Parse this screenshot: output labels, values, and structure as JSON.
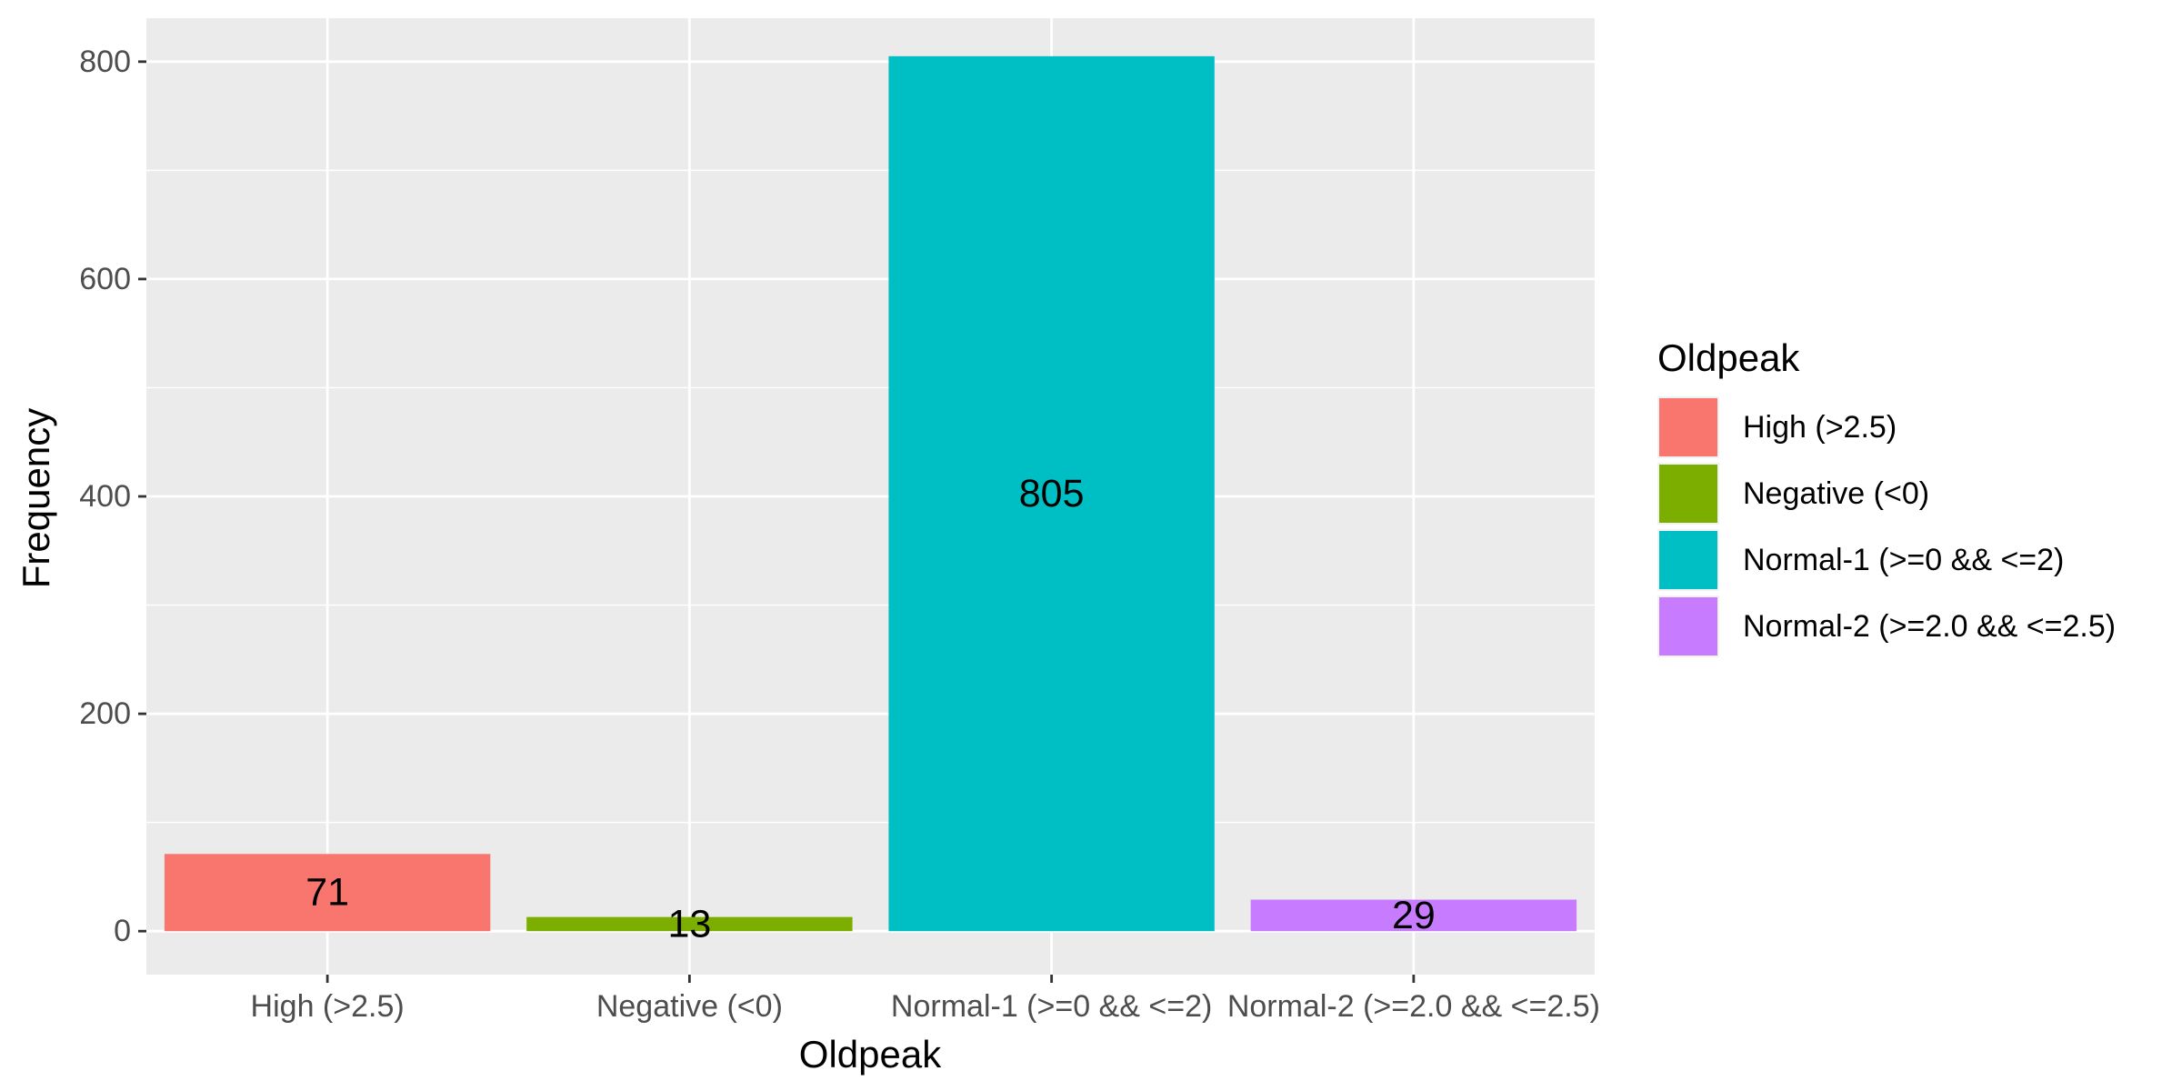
{
  "chart_data": {
    "type": "bar",
    "categories": [
      "High (>2.5)",
      "Negative (<0)",
      "Normal-1 (>=0 && <=2)",
      "Normal-2 (>=2.0 && <=2.5)"
    ],
    "values": [
      71,
      13,
      805,
      29
    ],
    "data_labels": [
      "71",
      "13",
      "805",
      "29"
    ],
    "colors": [
      "#F8766D",
      "#7CAE00",
      "#00BFC4",
      "#C77CFF"
    ],
    "xlabel": "Oldpeak",
    "ylabel": "Frequency",
    "ylim": [
      -40,
      840
    ],
    "yticks": [
      0,
      200,
      400,
      600,
      800
    ],
    "ytick_labels": [
      "0",
      "200",
      "400",
      "600",
      "800"
    ],
    "grid": true,
    "panel_background": "#EBEBEB",
    "legend": {
      "title": "Oldpeak",
      "placement": "right",
      "items": [
        "High (>2.5)",
        "Negative (<0)",
        "Normal-1 (>=0 && <=2)",
        "Normal-2 (>=2.0 && <=2.5)"
      ]
    }
  }
}
